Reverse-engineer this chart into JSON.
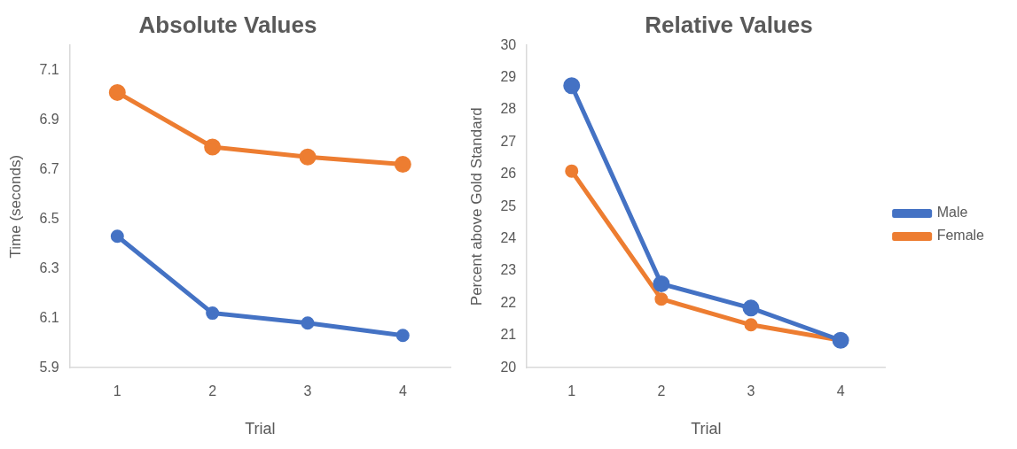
{
  "chart_data": [
    {
      "type": "line",
      "title": "Absolute Values",
      "xlabel": "Trial",
      "ylabel": "Time (seconds)",
      "categories": [
        "1",
        "2",
        "3",
        "4"
      ],
      "series": [
        {
          "color": "#ed7d31",
          "values": [
            7.01,
            6.79,
            6.75,
            6.72
          ]
        },
        {
          "color": "#4472c4",
          "values": [
            6.43,
            6.12,
            6.08,
            6.03
          ]
        }
      ],
      "ylim": [
        5.9,
        7.2
      ],
      "yticks": [
        5.9,
        6.1,
        6.3,
        6.5,
        6.7,
        6.9,
        7.1
      ],
      "grid": false,
      "legend": false,
      "marker": "circle",
      "line_style": "solid"
    },
    {
      "type": "line",
      "title": "Relative Values",
      "xlabel": "Trial",
      "ylabel": "Percent above Gold Standard",
      "categories": [
        "1",
        "2",
        "3",
        "4"
      ],
      "series": [
        {
          "name": "Male",
          "color": "#4472c4",
          "values": [
            28.75,
            22.6,
            21.85,
            20.85
          ]
        },
        {
          "name": "Female",
          "color": "#ed7d31",
          "values": [
            26.1,
            22.13,
            21.33,
            20.85
          ]
        }
      ],
      "ylim": [
        20,
        30
      ],
      "yticks": [
        20,
        21,
        22,
        23,
        24,
        25,
        26,
        27,
        28,
        29,
        30
      ],
      "grid": false,
      "legend": "right",
      "marker": "circle",
      "line_style": "solid"
    }
  ]
}
